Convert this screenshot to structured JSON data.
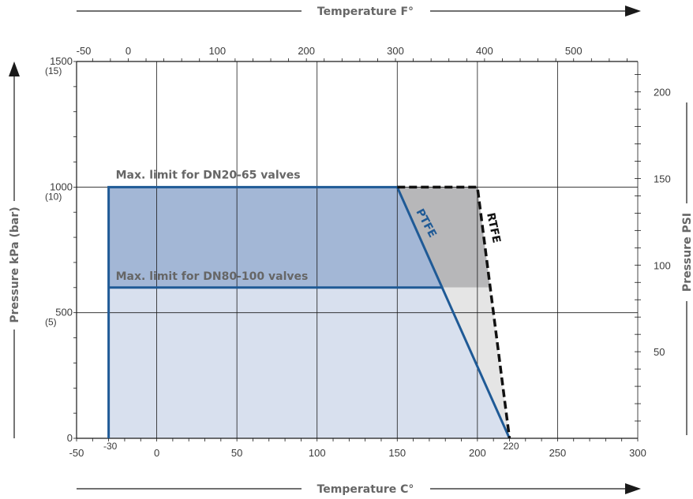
{
  "chart_data": {
    "type": "area",
    "title": "",
    "xlabel": "Temperature C°",
    "x2label": "Temperature F°",
    "ylabel": "Pressure kPa (bar)",
    "y2label": "Pressure PSI",
    "xlim": [
      -50,
      300
    ],
    "ylim": [
      0,
      1500
    ],
    "x_ticks": [
      "-50",
      "0",
      "50",
      "100",
      "150",
      "200",
      "250",
      "300"
    ],
    "x_ticks_extra": [
      "-30",
      "220"
    ],
    "x2_ticks": [
      "-50",
      "0",
      "100",
      "200",
      "300",
      "400",
      "500"
    ],
    "y_ticks": [
      {
        "value": 0,
        "label": "0",
        "sub": ""
      },
      {
        "value": 500,
        "label": "500",
        "sub": "(5)"
      },
      {
        "value": 1000,
        "label": "1000",
        "sub": "(10)"
      },
      {
        "value": 1500,
        "label": "1500",
        "sub": "(15)"
      }
    ],
    "y2_ticks": [
      "50",
      "100",
      "150",
      "200"
    ],
    "grid": true,
    "limits": [
      {
        "label": "Max. limit for DN20-65 valves",
        "pressure_kpa": 1000,
        "x_start": -30,
        "x_end": 150
      },
      {
        "label": "Max. limit for DN80-100 valves",
        "pressure_kpa": 600,
        "x_start": -30,
        "x_end": 177
      }
    ],
    "series": [
      {
        "name": "PTFE",
        "color": "#1f5a96",
        "style": "solid",
        "points": [
          {
            "x": -30,
            "y": 0
          },
          {
            "x": -30,
            "y": 1000
          },
          {
            "x": 150,
            "y": 1000
          },
          {
            "x": 220,
            "y": 0
          }
        ]
      },
      {
        "name": "RTFE",
        "color": "#111111",
        "style": "dashed",
        "points": [
          {
            "x": 150,
            "y": 1000
          },
          {
            "x": 200,
            "y": 1000
          },
          {
            "x": 220,
            "y": 0
          }
        ]
      }
    ],
    "colors": {
      "ptfe_line": "#1f5a96",
      "fill_dark_blue": "#a3b7d6",
      "fill_light_blue": "#d8e0ee",
      "fill_dark_gray": "#b7b7b9",
      "fill_light_gray": "#e5e5e5",
      "grid": "#1a1a1a",
      "label_gray": "#666666"
    }
  }
}
